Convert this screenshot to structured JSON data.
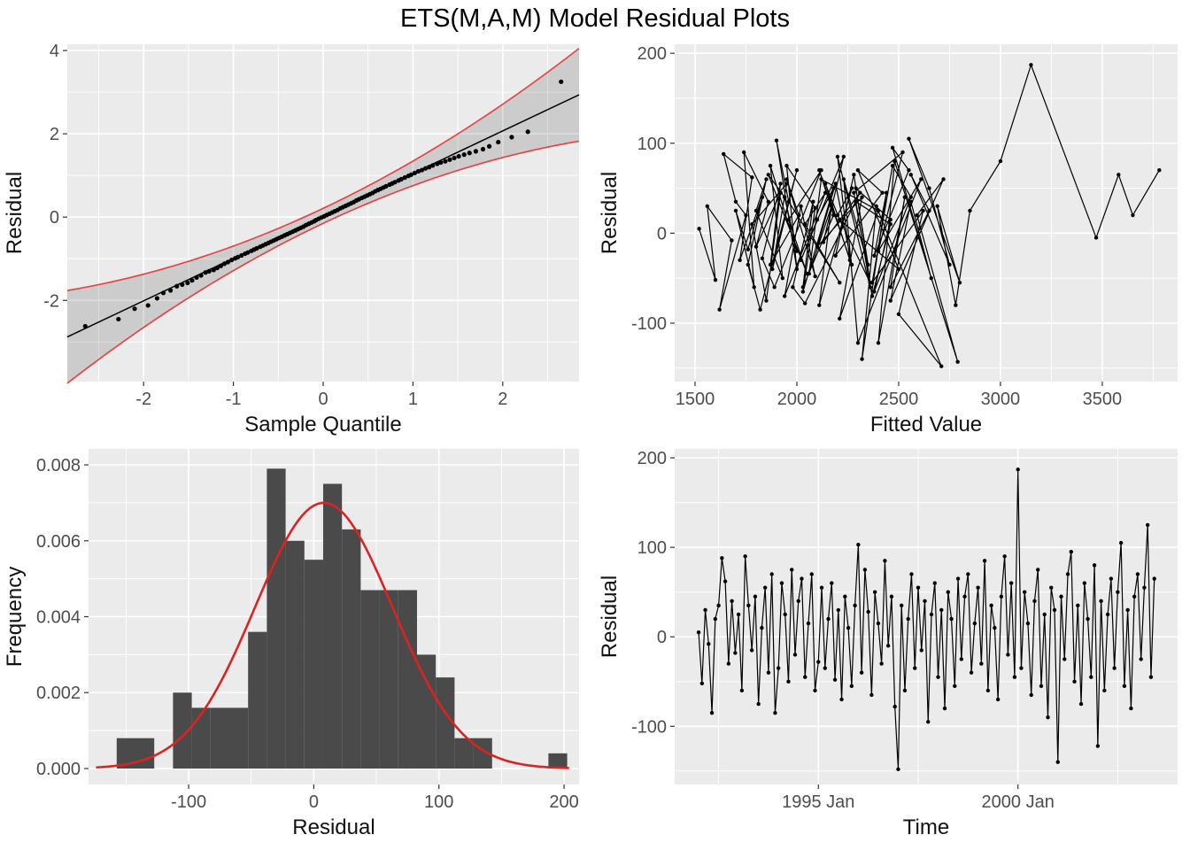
{
  "title": "ETS(M,A,M) Model Residual Plots",
  "style": {
    "panel_bg": "#EBEBEB",
    "grid": "#FFFFFF",
    "tick_text": "#4D4D4D",
    "axis_title": "#111111",
    "band_red": "#E64545",
    "curve_red": "#DD2222",
    "bar_fill": "#4A4A4A",
    "point": "#000000",
    "ribbon": "rgba(0,0,0,0.13)"
  },
  "chart_data": [
    {
      "type": "qq",
      "xlabel": "Sample Quantile",
      "ylabel": "Residual",
      "x": {
        "domain": [
          -2.85,
          2.85
        ],
        "ticks": {
          "values": [
            -2,
            -1,
            0,
            1,
            2
          ],
          "labels": [
            "-2",
            "-1",
            "0",
            "1",
            "2"
          ]
        }
      },
      "y": {
        "domain": [
          -3.95,
          4.15
        ],
        "ticks": {
          "values": [
            -2,
            0,
            2,
            4
          ],
          "labels": [
            "-2",
            "0",
            "2",
            "4"
          ]
        }
      },
      "line": {
        "slope": 1.02,
        "intercept": 0.03
      },
      "band": {
        "base": 0.18,
        "quad": 0.115
      },
      "points": {
        "x": [
          -2.65,
          -2.28,
          -2.1,
          -1.95,
          -1.85,
          -1.78,
          -1.7,
          -1.63,
          -1.57,
          -1.51,
          -1.46,
          -1.41,
          -1.36,
          -1.31,
          -1.27,
          -1.22,
          -1.18,
          -1.14,
          -1.1,
          -1.06,
          -1.02,
          -0.98,
          -0.95,
          -0.91,
          -0.87,
          -0.84,
          -0.8,
          -0.77,
          -0.74,
          -0.7,
          -0.67,
          -0.64,
          -0.61,
          -0.58,
          -0.55,
          -0.52,
          -0.49,
          -0.46,
          -0.43,
          -0.4,
          -0.37,
          -0.34,
          -0.31,
          -0.28,
          -0.25,
          -0.22,
          -0.19,
          -0.16,
          -0.13,
          -0.1,
          -0.08,
          -0.05,
          -0.02,
          0.01,
          0.04,
          0.07,
          0.1,
          0.13,
          0.16,
          0.19,
          0.22,
          0.25,
          0.28,
          0.31,
          0.34,
          0.37,
          0.4,
          0.43,
          0.46,
          0.49,
          0.52,
          0.55,
          0.58,
          0.61,
          0.64,
          0.67,
          0.7,
          0.74,
          0.77,
          0.8,
          0.84,
          0.87,
          0.91,
          0.95,
          0.98,
          1.02,
          1.06,
          1.1,
          1.14,
          1.18,
          1.22,
          1.27,
          1.31,
          1.36,
          1.41,
          1.46,
          1.51,
          1.57,
          1.63,
          1.7,
          1.78,
          1.85,
          1.95,
          2.1,
          2.28,
          2.65
        ],
        "y": [
          -2.62,
          -2.45,
          -2.2,
          -2.12,
          -1.95,
          -1.82,
          -1.76,
          -1.66,
          -1.62,
          -1.58,
          -1.52,
          -1.45,
          -1.4,
          -1.33,
          -1.3,
          -1.27,
          -1.22,
          -1.17,
          -1.12,
          -1.08,
          -1.03,
          -0.99,
          -0.96,
          -0.92,
          -0.88,
          -0.85,
          -0.81,
          -0.78,
          -0.75,
          -0.71,
          -0.68,
          -0.65,
          -0.62,
          -0.59,
          -0.56,
          -0.53,
          -0.5,
          -0.47,
          -0.44,
          -0.41,
          -0.38,
          -0.35,
          -0.32,
          -0.29,
          -0.26,
          -0.23,
          -0.19,
          -0.16,
          -0.13,
          -0.1,
          -0.07,
          -0.04,
          -0.01,
          0.02,
          0.05,
          0.08,
          0.11,
          0.14,
          0.17,
          0.21,
          0.24,
          0.27,
          0.3,
          0.33,
          0.36,
          0.4,
          0.43,
          0.46,
          0.49,
          0.52,
          0.55,
          0.58,
          0.62,
          0.65,
          0.68,
          0.71,
          0.74,
          0.78,
          0.81,
          0.84,
          0.88,
          0.91,
          0.95,
          0.99,
          1.02,
          1.06,
          1.1,
          1.13,
          1.17,
          1.2,
          1.24,
          1.28,
          1.31,
          1.34,
          1.38,
          1.42,
          1.46,
          1.5,
          1.54,
          1.58,
          1.63,
          1.7,
          1.8,
          1.92,
          2.05,
          3.25
        ]
      }
    },
    {
      "type": "scatter-line",
      "xlabel": "Fitted Value",
      "ylabel": "Residual",
      "x": {
        "domain": [
          1400,
          3870
        ],
        "ticks": {
          "values": [
            1500,
            2000,
            2500,
            3000,
            3500
          ],
          "labels": [
            "1500",
            "2000",
            "2500",
            "3000",
            "3500"
          ]
        }
      },
      "y": {
        "domain": [
          -165,
          210
        ],
        "ticks": {
          "values": [
            -100,
            0,
            100,
            200
          ],
          "labels": [
            "-100",
            "0",
            "100",
            "200"
          ]
        }
      },
      "points": {
        "x": [
          1520,
          1600,
          1560,
          1680,
          1620,
          1750,
          1700,
          1640,
          1780,
          1720,
          1830,
          1760,
          1700,
          1790,
          1740,
          1860,
          1800,
          1920,
          1850,
          1780,
          1950,
          1880,
          2000,
          1820,
          1760,
          1850,
          1800,
          1930,
          1870,
          2000,
          1940,
          1860,
          2050,
          1960,
          2120,
          1890,
          1830,
          1920,
          1870,
          2010,
          1950,
          2090,
          2020,
          1940,
          2140,
          2040,
          2210,
          1960,
          1900,
          2000,
          1950,
          2090,
          2030,
          2180,
          2100,
          2020,
          2230,
          2130,
          2310,
          2040,
          1980,
          2080,
          2030,
          2180,
          2110,
          2270,
          2190,
          2100,
          2320,
          2210,
          2400,
          2120,
          2060,
          2170,
          2110,
          2270,
          2200,
          2360,
          2280,
          2190,
          2420,
          2300,
          2500,
          2210,
          2140,
          2260,
          2200,
          2360,
          2290,
          2460,
          2370,
          2280,
          2520,
          2400,
          2610,
          2300,
          2230,
          2350,
          2290,
          2460,
          2380,
          2560,
          2470,
          2370,
          2620,
          2500,
          2710,
          2390,
          2320,
          2440,
          2380,
          2550,
          2470,
          2660,
          2560,
          2460,
          2720,
          2590,
          2790,
          2480,
          2400,
          2530,
          2460,
          2650,
          2560,
          2750,
          2650,
          2550,
          2800,
          2690,
          2780,
          2850,
          3000,
          3150,
          3470,
          3580,
          3650,
          3780
        ],
        "y": [
          5,
          -52,
          30,
          -8,
          -85,
          20,
          35,
          88,
          62,
          -30,
          40,
          -18,
          25,
          -60,
          90,
          35,
          -15,
          45,
          -75,
          10,
          55,
          -40,
          70,
          -85,
          -35,
          60,
          25,
          -50,
          75,
          -20,
          40,
          65,
          -45,
          15,
          70,
          -60,
          -28,
          55,
          -35,
          20,
          60,
          -48,
          30,
          -70,
          45,
          10,
          -55,
          35,
          103,
          -40,
          75,
          28,
          -65,
          50,
          15,
          -30,
          85,
          -10,
          45,
          -78,
          -60,
          35,
          -60,
          20,
          70,
          -35,
          55,
          -15,
          40,
          -95,
          25,
          60,
          -45,
          30,
          -80,
          50,
          20,
          -55,
          65,
          -25,
          45,
          70,
          -40,
          15,
          55,
          -30,
          85,
          -60,
          35,
          10,
          -70,
          45,
          90,
          -20,
          60,
          -122,
          60,
          -35,
          50,
          15,
          -65,
          40,
          75,
          -55,
          25,
          -90,
          -148,
          30,
          -140,
          45,
          -25,
          70,
          95,
          -50,
          35,
          -75,
          60,
          20,
          -143,
          80,
          -122,
          40,
          -60,
          25,
          65,
          -35,
          50,
          105,
          -55,
          30,
          -80,
          25,
          80,
          187,
          -5,
          65,
          20,
          70
        ]
      }
    },
    {
      "type": "hist",
      "xlabel": "Residual",
      "ylabel": "Frequency",
      "x": {
        "domain": [
          -180,
          212
        ],
        "ticks": {
          "values": [
            -100,
            0,
            100,
            200
          ],
          "labels": [
            "-100",
            "0",
            "100",
            "200"
          ]
        }
      },
      "y": {
        "domain": [
          -0.00042,
          0.00842
        ],
        "ticks": {
          "values": [
            0,
            0.002,
            0.004,
            0.006,
            0.008
          ],
          "labels": [
            "0.000",
            "0.002",
            "0.004",
            "0.006",
            "0.008"
          ]
        }
      },
      "bins": {
        "start": -157.5,
        "width": 15,
        "density": [
          0.0008,
          0.0008,
          0,
          0.002,
          0.0016,
          0.0016,
          0.0016,
          0.0036,
          0.0079,
          0.006,
          0.0055,
          0.0075,
          0.0063,
          0.0047,
          0.0047,
          0.0047,
          0.003,
          0.0024,
          0.0008,
          0.0008,
          0,
          0,
          0,
          0.0004
        ]
      },
      "curve": {
        "mean": 8,
        "sd": 55,
        "peak": 0.007
      }
    },
    {
      "type": "time-line",
      "xlabel": "Time",
      "ylabel": "Residual",
      "x": {
        "domain": [
          1991.4,
          2004.0
        ],
        "ticks": {
          "values": [
            1995,
            2000
          ],
          "labels": [
            "1995 Jan",
            "2000 Jan"
          ]
        }
      },
      "y": {
        "domain": [
          -165,
          210
        ],
        "ticks": {
          "values": [
            -100,
            0,
            100,
            200
          ],
          "labels": [
            "-100",
            "0",
            "100",
            "200"
          ]
        }
      },
      "series": {
        "start": 1992,
        "per_year": 12,
        "values": [
          5,
          -52,
          30,
          -8,
          -85,
          20,
          35,
          88,
          62,
          -30,
          40,
          -18,
          25,
          -60,
          90,
          35,
          -15,
          45,
          -75,
          10,
          55,
          -40,
          70,
          -85,
          -35,
          60,
          25,
          -50,
          75,
          -20,
          40,
          65,
          -45,
          15,
          70,
          -60,
          -28,
          55,
          -35,
          20,
          60,
          -48,
          30,
          -70,
          45,
          10,
          -55,
          35,
          103,
          -40,
          75,
          28,
          -65,
          50,
          15,
          -30,
          85,
          -10,
          45,
          -78,
          -148,
          35,
          -60,
          20,
          70,
          -35,
          55,
          -15,
          40,
          -95,
          25,
          60,
          -45,
          30,
          -80,
          50,
          20,
          -55,
          65,
          -25,
          45,
          70,
          -40,
          15,
          55,
          -30,
          85,
          -60,
          35,
          10,
          -70,
          45,
          90,
          -20,
          60,
          -45,
          187,
          -35,
          50,
          15,
          -65,
          40,
          75,
          -55,
          25,
          -90,
          55,
          30,
          -140,
          45,
          -25,
          70,
          95,
          -50,
          35,
          -75,
          60,
          20,
          -45,
          80,
          -122,
          40,
          -60,
          25,
          65,
          -35,
          50,
          105,
          -55,
          30,
          -80,
          45,
          70,
          -25,
          55,
          125,
          -45,
          65
        ]
      }
    }
  ]
}
